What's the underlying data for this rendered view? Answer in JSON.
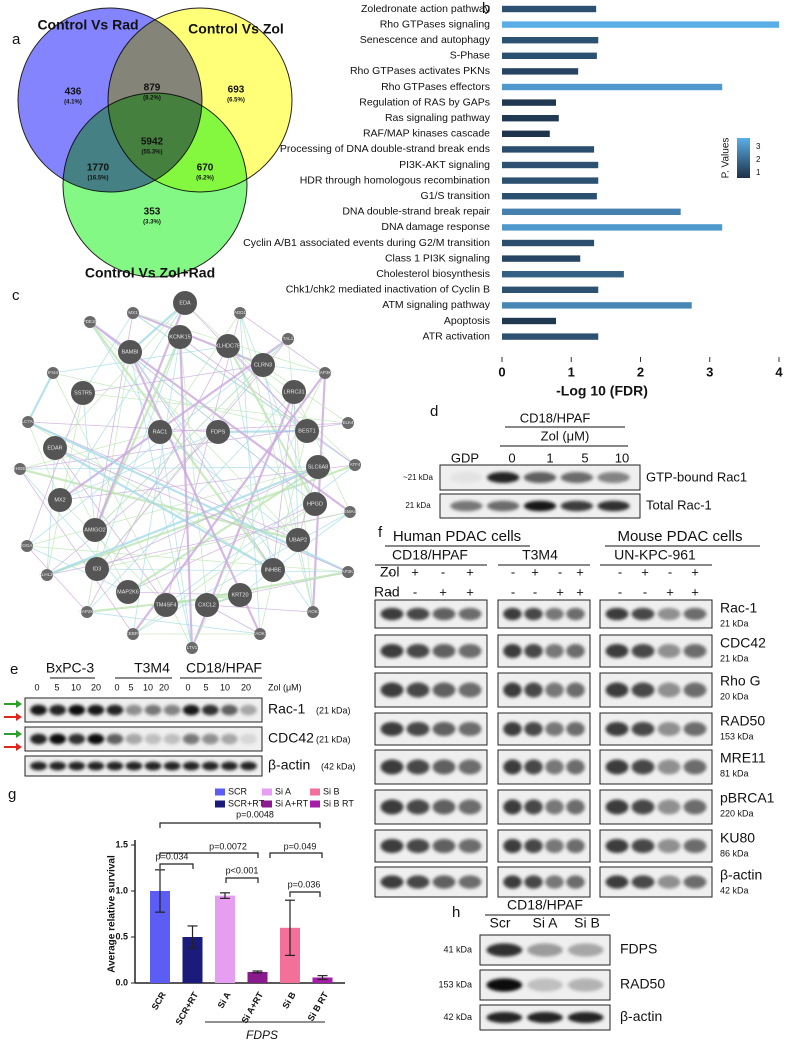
{
  "panel_labels": [
    "a",
    "b",
    "c",
    "d",
    "e",
    "f",
    "g",
    "h"
  ],
  "venn": {
    "sets": [
      "Control Vs Rad",
      "Control Vs Zol",
      "Control Vs Zol+Rad"
    ],
    "regions": [
      {
        "count": "436",
        "percent": "(4.1%)"
      },
      {
        "count": "879",
        "percent": "(8.2%)"
      },
      {
        "count": "693",
        "percent": "(6.5%)"
      },
      {
        "count": "5942",
        "percent": "(55.3%)"
      },
      {
        "count": "1770",
        "percent": "(16.5%)"
      },
      {
        "count": "670",
        "percent": "(6.2%)"
      },
      {
        "count": "353",
        "percent": "(3.3%)"
      }
    ]
  },
  "chart_data": [
    {
      "type": "barh",
      "categories": [
        "Zoledronate action pathway",
        "Rho GTPases signaling",
        "Senescence and autophagy",
        "S-Phase",
        "Rho GTPases activates PKNs",
        "Rho GTPases effectors",
        "Regulation of RAS by GAPs",
        "Ras signaling pathway",
        "RAF/MAP kinases cascade",
        "Processing of DNA double-strand break ends",
        "PI3K-AKT signaling",
        "HDR through homologous recombination",
        "G1/S transition",
        "DNA double-strand break repair",
        "DNA damage response",
        "Cyclin A/B1 associated events during G2/M transition",
        "Class 1 PI3K signaling",
        "Cholesterol biosynthesis",
        "Chk1/chk2 mediated inactivation of Cyclin B",
        "ATM signaling pathway",
        "Apoptosis",
        "ATR activation"
      ],
      "values": [
        1.36,
        4.0,
        1.39,
        1.37,
        1.1,
        3.18,
        0.78,
        0.82,
        0.69,
        1.33,
        1.39,
        1.39,
        1.37,
        2.58,
        3.18,
        1.33,
        1.13,
        1.76,
        1.39,
        2.74,
        0.78,
        1.39
      ],
      "xlim": [
        0,
        4
      ],
      "xticks": [
        0,
        1,
        2,
        3,
        4
      ],
      "x_label": "-Log 10 (FDR)",
      "grid": false,
      "colorbar": {
        "title": "P. Values",
        "lim": [
          0.6,
          3.7
        ],
        "ticks": [
          1,
          2,
          3
        ],
        "colors": [
          "#1d3148",
          "#5aaee8"
        ]
      }
    },
    {
      "type": "bar",
      "categories": [
        "SCR",
        "SCR+RT",
        "Si A",
        "Si A+RT",
        "Si B",
        "Si B RT"
      ],
      "values": [
        1.0,
        0.5,
        0.95,
        0.12,
        0.6,
        0.06
      ],
      "errors": [
        0.23,
        0.12,
        0.03,
        0.01,
        0.3,
        0.02
      ],
      "colors": [
        "#5b5df5",
        "#1b1b7c",
        "#e59ef2",
        "#8a1a8e",
        "#f27099",
        "#a51ca8"
      ],
      "ylim": [
        0,
        1.5
      ],
      "yticks": [
        {
          "value": 0,
          "label": "0.0"
        },
        0.5,
        {
          "value": 1,
          "label": "1.0"
        },
        1.5
      ],
      "y_label": "Average relative survival",
      "x_group_label": "FDPS",
      "annotations": [
        "p=0.0048",
        "p=0.0072",
        "p=0.049",
        "p=0.034",
        "p<0.001",
        "p=0.036"
      ]
    }
  ],
  "network": {
    "nodes": [
      "EDA",
      "ADD1",
      "MX1",
      "PDE1B",
      "KCNK15",
      "KLHDC7B",
      "TAL1",
      "BAMBI",
      "CLRN3",
      "LRRC31",
      "MAP3K8",
      "IFI44",
      "SSTR5",
      "BEST1",
      "ELK4",
      "SLC7A11",
      "RAC1",
      "FDPS",
      "SLC6A8",
      "ATF4",
      "ARHGEF4",
      "EDAR",
      "HPGD",
      "MX2",
      "SEMA4B",
      "AMIGO2",
      "UBAP2",
      "HOGA1",
      "INHBE",
      "KLHL20",
      "MAP3K10",
      "ID3",
      "MAP2K6",
      "KRT20",
      "MAP2K4",
      "TM4SF4",
      "CXCL2",
      "TAOK3",
      "CEBPA",
      "TAOK1",
      "LTV1"
    ]
  },
  "panel_d": {
    "cell_line": "CD18/HPAF",
    "treatment": "Zol (μM)",
    "lanes": [
      "GDP",
      "0",
      "1",
      "5",
      "10"
    ],
    "rows": [
      {
        "size": "~21 kDa",
        "name": "GTP-bound Rac1"
      },
      {
        "size": "21 kDa",
        "name": "Total Rac-1"
      }
    ]
  },
  "panel_e": {
    "cell_lines": [
      "BxPC-3",
      "T3M4",
      "CD18/HPAF"
    ],
    "doses": [
      "0",
      "5",
      "10",
      "20"
    ],
    "treatment": "Zol (μM)",
    "rows": [
      {
        "name": "Rac-1",
        "size": "(21 kDa)"
      },
      {
        "name": "CDC42",
        "size": "(21 kDa)"
      },
      {
        "name": "β-actin",
        "size": "(42 kDa)"
      }
    ]
  },
  "panel_f": {
    "groups": [
      "Human PDAC cells",
      "Mouse PDAC cells"
    ],
    "cell_lines": [
      "CD18/HPAF",
      "T3M4",
      "UN-KPC-961"
    ],
    "conditions": [
      {
        "name": "Zol",
        "signs": [
          "-",
          "+",
          "-",
          "+"
        ]
      },
      {
        "name": "Rad",
        "signs": [
          "-",
          "-",
          "+",
          "+"
        ]
      }
    ],
    "rows": [
      {
        "name": "Rac-1",
        "size": "21 kDa"
      },
      {
        "name": "CDC42",
        "size": "21 kDa"
      },
      {
        "name": "Rho G",
        "size": "20 kDa"
      },
      {
        "name": "RAD50",
        "size": "153 kDa"
      },
      {
        "name": "MRE11",
        "size": "81 kDa"
      },
      {
        "name": "pBRCA1",
        "size": "220 kDa"
      },
      {
        "name": "KU80",
        "size": "86 kDa"
      },
      {
        "name": "β-actin",
        "size": "42 kDa"
      }
    ]
  },
  "panel_h": {
    "cell_line": "CD18/HPAF",
    "lanes": [
      "Scr",
      "Si A",
      "Si B"
    ],
    "rows": [
      {
        "size": "41 kDa",
        "name": "FDPS"
      },
      {
        "size": "153 kDa",
        "name": "RAD50"
      },
      {
        "size": "42 kDa",
        "name": "β-actin"
      }
    ]
  }
}
